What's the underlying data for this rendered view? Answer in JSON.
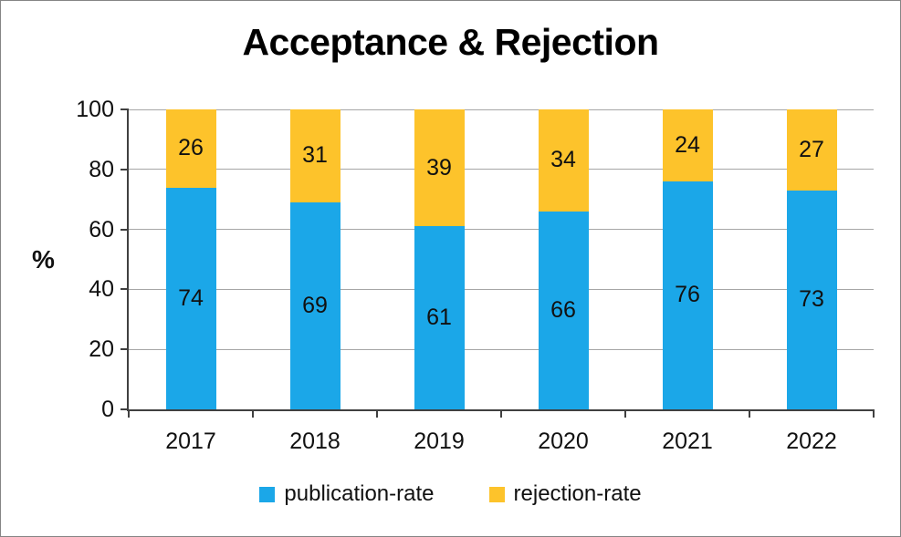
{
  "chart_data": {
    "type": "bar",
    "stacked": true,
    "title": "Acceptance & Rejection",
    "ylabel": "%",
    "xlabel": "",
    "categories": [
      "2017",
      "2018",
      "2019",
      "2020",
      "2021",
      "2022"
    ],
    "series": [
      {
        "name": "publication-rate",
        "color": "#1BA7E8",
        "values": [
          74,
          69,
          61,
          66,
          76,
          73
        ]
      },
      {
        "name": "rejection-rate",
        "color": "#FDC32B",
        "values": [
          26,
          31,
          39,
          34,
          24,
          27
        ]
      }
    ],
    "ylim": [
      0,
      100
    ],
    "yticks": [
      0,
      20,
      40,
      60,
      80,
      100
    ],
    "grid": true,
    "legend_position": "bottom"
  },
  "colors": {
    "background": "#FFFFFF",
    "frame_border": "#858585",
    "gridline": "#A6A6A6",
    "axis": "#404040",
    "text": "#111111",
    "title": "#000000"
  }
}
